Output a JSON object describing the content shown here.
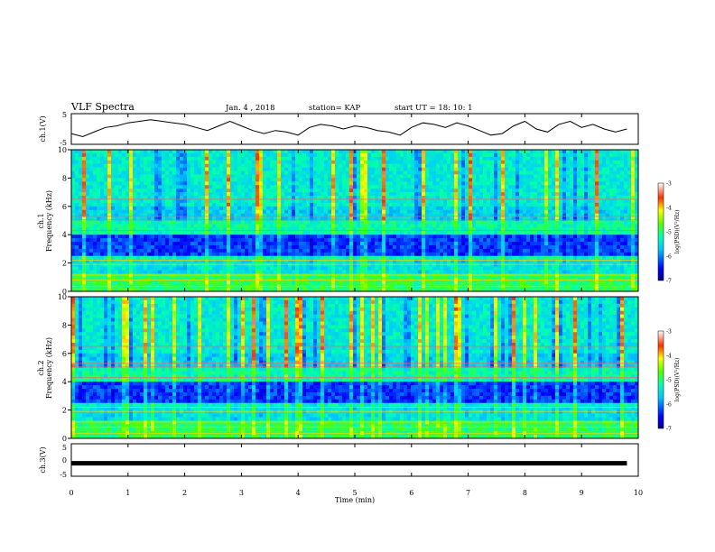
{
  "header": {
    "title": "VLF Spectra",
    "date": "Jan. 4 , 2018",
    "station": "station= KAP",
    "start_time": "start UT =  18: 10: 1"
  },
  "chart_data": [
    {
      "type": "line",
      "panel": "ch1-waveform",
      "ylabel": "ch.1(V)",
      "ylim": [
        -5,
        5
      ],
      "yticks": [
        "5",
        "-5"
      ],
      "xlim": [
        0,
        10
      ],
      "x": [
        0.0,
        0.2,
        0.4,
        0.6,
        0.8,
        1.0,
        1.2,
        1.4,
        1.6,
        1.8,
        2.0,
        2.2,
        2.4,
        2.6,
        2.8,
        3.0,
        3.2,
        3.4,
        3.6,
        3.8,
        4.0,
        4.2,
        4.4,
        4.6,
        4.8,
        5.0,
        5.2,
        5.4,
        5.6,
        5.8,
        6.0,
        6.2,
        6.4,
        6.6,
        6.8,
        7.0,
        7.2,
        7.4,
        7.6,
        7.8,
        8.0,
        8.2,
        8.4,
        8.6,
        8.8,
        9.0,
        9.2,
        9.4,
        9.6,
        9.8
      ],
      "y": [
        -1.5,
        -2.5,
        -1.0,
        0.5,
        1.0,
        2.0,
        2.5,
        3.0,
        2.5,
        2.0,
        1.5,
        0.5,
        -0.5,
        1.0,
        2.5,
        1.0,
        -0.5,
        -1.5,
        -0.5,
        -1.0,
        -2.0,
        0.5,
        1.5,
        1.0,
        0.0,
        1.0,
        0.5,
        -0.5,
        -1.0,
        -2.0,
        0.5,
        2.0,
        1.5,
        0.5,
        2.0,
        1.0,
        -0.5,
        -2.0,
        -1.5,
        1.0,
        2.5,
        0.0,
        -1.0,
        1.5,
        2.5,
        0.5,
        1.5,
        0.0,
        -1.0,
        0.0
      ]
    },
    {
      "type": "heatmap",
      "panel": "ch1-spectrogram",
      "ylabel": "ch.1",
      "ylabel2": "Frequency (kHz)",
      "ylim": [
        0,
        10
      ],
      "yticks": [
        "0",
        "2",
        "4",
        "6",
        "8",
        "10"
      ],
      "xlim": [
        0,
        10
      ],
      "colorbar": {
        "label": "log(PSD)(V²/Hz)",
        "ticks": [
          "-3",
          "-4",
          "-5",
          "-6",
          "-7"
        ],
        "range": [
          -7,
          -3
        ]
      }
    },
    {
      "type": "heatmap",
      "panel": "ch2-spectrogram",
      "ylabel": "ch.2",
      "ylabel2": "Frequency (kHz)",
      "ylim": [
        0,
        10
      ],
      "yticks": [
        "0",
        "2",
        "4",
        "6",
        "8",
        "10"
      ],
      "xlim": [
        0,
        10
      ],
      "colorbar": {
        "label": "log(PSD)(V²/Hz)",
        "ticks": [
          "-3",
          "-4",
          "-5",
          "-6",
          "-7"
        ],
        "range": [
          -7,
          -3
        ]
      }
    },
    {
      "type": "line",
      "panel": "ch3-waveform",
      "ylabel": "ch.3(V)",
      "ylim": [
        -5,
        5
      ],
      "yticks": [
        "5",
        "0",
        "-5"
      ],
      "xlim": [
        0,
        10
      ],
      "x": [
        0,
        9.8
      ],
      "y": [
        -1,
        -1
      ],
      "xlabel": "Time (min)",
      "xticks": [
        "0",
        "1",
        "2",
        "3",
        "4",
        "5",
        "6",
        "7",
        "8",
        "9",
        "10"
      ]
    }
  ]
}
